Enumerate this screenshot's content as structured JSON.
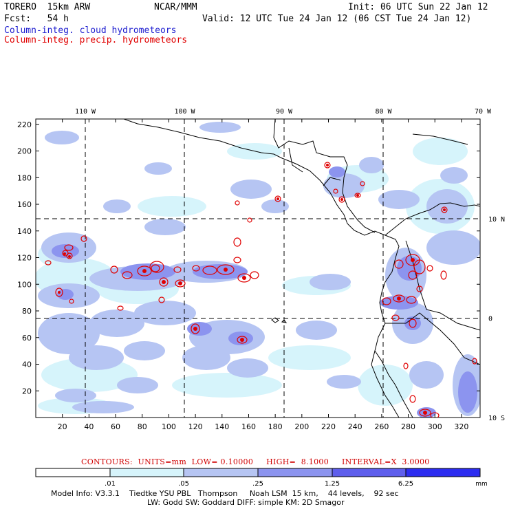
{
  "header": {
    "model": "TORERO  15km ARW",
    "org": "NCAR/MMM",
    "init": "Init: 06 UTC Sun 22 Jan 12",
    "fcst": "Fcst:   54 h",
    "valid": "Valid: 12 UTC Tue 24 Jan 12 (06 CST Tue 24 Jan 12)",
    "field1": "Column-integ. cloud hydrometeors",
    "field2": "Column-integ. precip. hydrometeors"
  },
  "colors": {
    "field1": "#2020d0",
    "field2": "#e00000",
    "palette": [
      "#ffffff",
      "#d6f4fb",
      "#b6c5f3",
      "#8c94ef",
      "#5e5eec",
      "#2c2cf0"
    ]
  },
  "map": {
    "top_labels": [
      "110 W",
      "100 W",
      "90 W",
      "80 W",
      "70 W"
    ],
    "right_labels": [
      "10 N",
      "0",
      "10 S"
    ],
    "x_ticks": [
      "20",
      "40",
      "60",
      "80",
      "100",
      "120",
      "140",
      "160",
      "180",
      "200",
      "220",
      "240",
      "260",
      "280",
      "300",
      "320"
    ],
    "y_ticks": [
      "220",
      "200",
      "180",
      "160",
      "140",
      "120",
      "100",
      "80",
      "60",
      "40",
      "20"
    ]
  },
  "contours": {
    "text": "CONTOURS:  UNITS=mm  LOW= 0.10000     HIGH=  8.1000     INTERVAL=X  3.0000"
  },
  "legend": {
    "labels": [
      ".01",
      ".05",
      ".25",
      "1.25",
      "6.25"
    ],
    "unit": "mm"
  },
  "footer": {
    "line1": "Model Info: V3.3.1    Tiedtke YSU PBL   Thompson     Noah LSM  15 km,    44 levels,    92 sec",
    "line2": "LW: Godd SW: Goddard DIFF: simple KM: 2D Smagor"
  }
}
